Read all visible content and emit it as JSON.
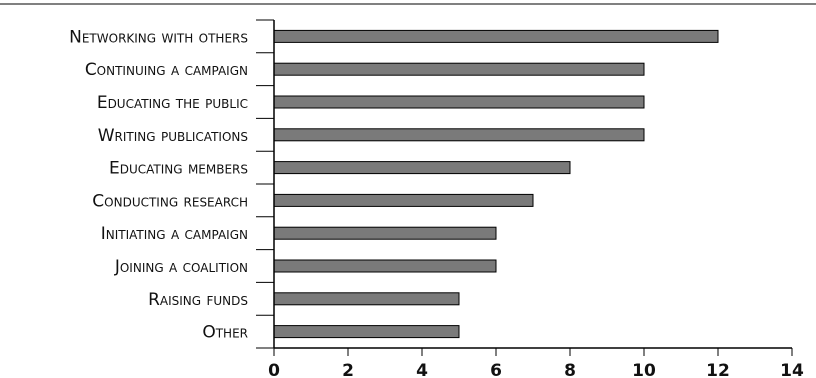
{
  "chart_data": {
    "type": "bar",
    "orientation": "horizontal",
    "categories": [
      "Networking with others",
      "Continuing a campaign",
      "Educating the public",
      "Writing publications",
      "Educating members",
      "Conducting research",
      "Initiating a campaign",
      "Joining a coalition",
      "Raising funds",
      "Other"
    ],
    "values": [
      12,
      10,
      10,
      10,
      8,
      7,
      6,
      6,
      5,
      5
    ],
    "xlim": [
      0,
      14
    ],
    "xticks": [
      "0",
      "2",
      "4",
      "6",
      "8",
      "10",
      "12",
      "14"
    ],
    "grid": false,
    "bar_color": "#7a7a7a",
    "bar_stroke": "#000000"
  }
}
